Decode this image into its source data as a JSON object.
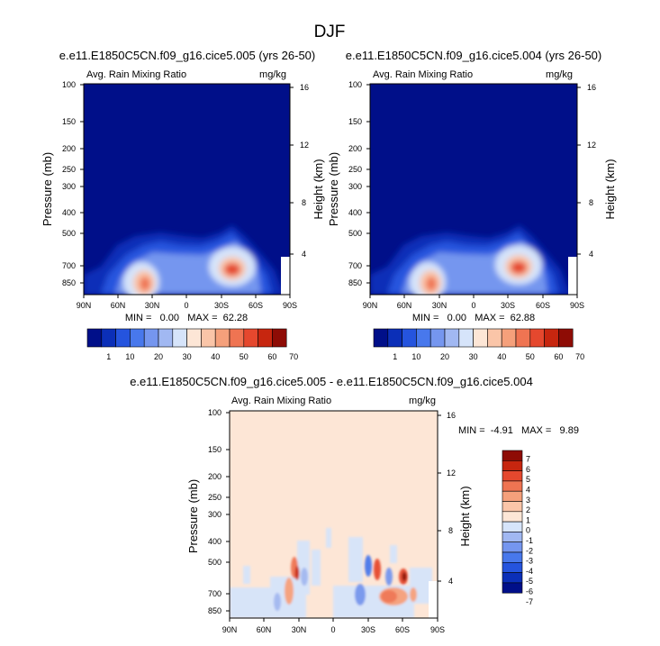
{
  "figure": {
    "title": "DJF"
  },
  "panels": [
    {
      "title": "e.e11.E1850C5CN.f09_g16.cice5.005 (yrs 26-50)",
      "left_label": "Avg. Rain Mixing Ratio",
      "right_label": "mg/kg",
      "ylabel": "Pressure (mb)",
      "ylabel_right": "Height (km)",
      "stats": "MIN =   0.00   MAX =  62.28"
    },
    {
      "title": "e.e11.E1850C5CN.f09_g16.cice5.004 (yrs 26-50)",
      "left_label": "Avg. Rain Mixing Ratio",
      "right_label": "mg/kg",
      "ylabel": "Pressure (mb)",
      "ylabel_right": "Height (km)",
      "stats": "MIN =   0.00   MAX =  62.88"
    },
    {
      "title": "e.e11.E1850C5CN.f09_g16.cice5.005 - e.e11.E1850C5CN.f09_g16.cice5.004",
      "left_label": "Avg. Rain Mixing Ratio",
      "right_label": "mg/kg",
      "ylabel": "Pressure (mb)",
      "ylabel_right": "Height (km)",
      "stats": "MIN =  -4.91   MAX =   9.89"
    }
  ],
  "colors": {
    "seq": [
      "#000f89",
      "#0b2fb8",
      "#2554de",
      "#4878ec",
      "#7596ef",
      "#a1b8f2",
      "#d6e4fa",
      "#fde6d6",
      "#fac5a8",
      "#f5a07b",
      "#ef7452",
      "#e5482e",
      "#c7260f",
      "#8e0c05"
    ],
    "div": [
      "#000f89",
      "#0b2fb8",
      "#2554de",
      "#4878ec",
      "#7596ef",
      "#a1b8f2",
      "#d6e4fa",
      "#fde6d6",
      "#fac5a8",
      "#f5a07b",
      "#ef7452",
      "#e5482e",
      "#c7260f",
      "#8e0c05"
    ]
  },
  "chart_data": [
    {
      "type": "heatmap",
      "panel": "left",
      "variable": "Avg. Rain Mixing Ratio",
      "units": "mg/kg",
      "x_ticks": [
        "90N",
        "60N",
        "30N",
        "0",
        "30S",
        "60S",
        "90S"
      ],
      "y_ticks": [
        "100",
        "150",
        "200",
        "250",
        "300",
        "400",
        "500",
        "700",
        "850"
      ],
      "y2_ticks": [
        "16",
        "12",
        "8",
        "4"
      ],
      "min": 0.0,
      "max": 62.28,
      "features": [
        {
          "lat": -40,
          "p": 710,
          "value": 60
        },
        {
          "lat": 38,
          "p": 830,
          "value": 55
        },
        {
          "lat": 0,
          "p": 760,
          "value": 20
        }
      ]
    },
    {
      "type": "heatmap",
      "panel": "right",
      "variable": "Avg. Rain Mixing Ratio",
      "units": "mg/kg",
      "x_ticks": [
        "90N",
        "60N",
        "30N",
        "0",
        "30S",
        "60S",
        "90S"
      ],
      "y_ticks": [
        "100",
        "150",
        "200",
        "250",
        "300",
        "400",
        "500",
        "700",
        "850"
      ],
      "y2_ticks": [
        "16",
        "12",
        "8",
        "4"
      ],
      "min": 0.0,
      "max": 62.88,
      "features": [
        {
          "lat": -40,
          "p": 705,
          "value": 60
        },
        {
          "lat": 38,
          "p": 830,
          "value": 55
        },
        {
          "lat": 0,
          "p": 760,
          "value": 20
        }
      ]
    },
    {
      "type": "heatmap",
      "panel": "difference",
      "variable": "Avg. Rain Mixing Ratio",
      "units": "mg/kg",
      "x_ticks": [
        "90N",
        "60N",
        "30N",
        "0",
        "30S",
        "60S",
        "90S"
      ],
      "y_ticks": [
        "100",
        "150",
        "200",
        "250",
        "300",
        "400",
        "500",
        "700",
        "850"
      ],
      "y2_ticks": [
        "16",
        "12",
        "8",
        "4"
      ],
      "min": -4.91,
      "max": 9.89,
      "features": [
        {
          "lat": 33,
          "p": 560,
          "value": 6
        },
        {
          "lat": -60,
          "p": 600,
          "value": 7
        },
        {
          "lat": -45,
          "p": 740,
          "value": 5
        },
        {
          "lat": -27,
          "p": 600,
          "value": -4
        }
      ]
    }
  ],
  "colorbar_seq": {
    "labels": [
      "1",
      "10",
      "20",
      "30",
      "40",
      "50",
      "60",
      "70"
    ]
  },
  "colorbar_div": {
    "labels": [
      "7",
      "6",
      "5",
      "4",
      "3",
      "2",
      "1",
      "0",
      "-1",
      "-2",
      "-3",
      "-4",
      "-5",
      "-6",
      "-7"
    ]
  }
}
